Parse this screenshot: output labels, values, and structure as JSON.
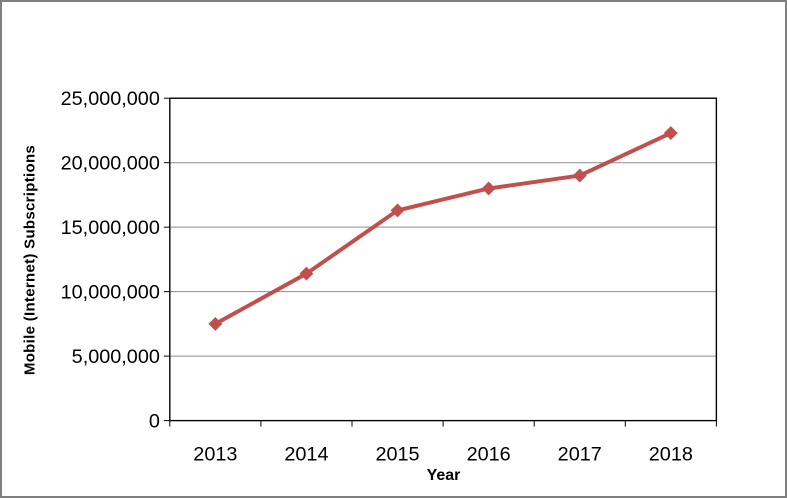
{
  "chart_data": {
    "type": "line",
    "categories": [
      "2013",
      "2014",
      "2015",
      "2016",
      "2017",
      "2018"
    ],
    "series": [
      {
        "name": "Mobile (Internet) Subscriptions",
        "values": [
          7500000,
          11400000,
          16300000,
          18000000,
          19000000,
          22300000
        ]
      }
    ],
    "title": "",
    "xlabel": "Year",
    "ylabel": "Mobile (Internet) Subscriptions",
    "ylim": [
      0,
      25000000
    ],
    "ytick_step": 5000000,
    "ytick_labels": [
      "0",
      "5,000,000",
      "10,000,000",
      "15,000,000",
      "20,000,000",
      "25,000,000"
    ],
    "grid": true,
    "legend_position": "none",
    "marker": "diamond",
    "colors": {
      "line": "#C0504D",
      "marker": "#C0504D",
      "gridline": "#8e8e8e",
      "axis": "#000000",
      "tick_text": "#000000",
      "frame_border": "#7f7f7f",
      "background": "#ffffff"
    },
    "tick_font_size": 20,
    "marker_half_size": 7,
    "line_width": 4
  }
}
